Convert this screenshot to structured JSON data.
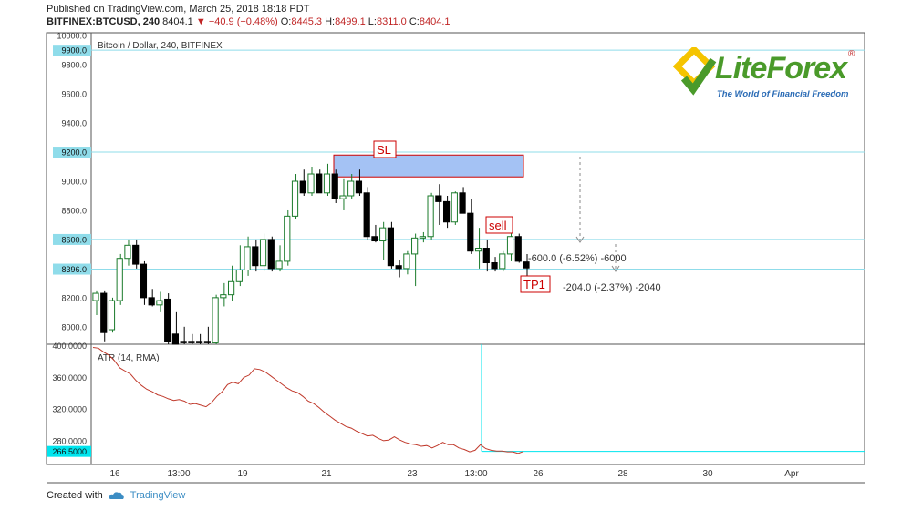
{
  "header": {
    "published": "Published on TradingView.com, March 25, 2018 18:18 PDT",
    "symbol": "BITFINEX:BTCUSD, 240",
    "last": "8404.1",
    "change_arrow": "▼",
    "change": "−40.9 (−0.48%)",
    "o_label": "O:",
    "o": "8445.3",
    "h_label": "H:",
    "h": "8499.1",
    "l_label": "L:",
    "l": "8311.0",
    "c_label": "C:",
    "c": "8404.1"
  },
  "logo": {
    "word": "LiteForex",
    "tagline": "The World of Financial Freedom",
    "reg": "®"
  },
  "footer": {
    "created_with": "Created with",
    "brand": "TradingView"
  },
  "colors": {
    "up_fill": "#ffffff",
    "candle_outline": "#1a7a2a",
    "down_fill": "#000000",
    "level_line": "#8fdcea",
    "atr_line": "#c0392b",
    "sl_box": "#a4c2f4",
    "sl_border": "#cc0000",
    "annotation_red": "#cc0000",
    "level_label_bg": "#8fdcea",
    "atr_label_bg": "#00e5ee"
  },
  "chart_data": [
    {
      "type": "candlestick",
      "title": "Bitcoin / Dollar, 240, BITFINEX",
      "ylim": [
        7880,
        10020
      ],
      "y_ticks": [
        "10000.0",
        "9800.0",
        "9600.0",
        "9400.0",
        "9200.0",
        "9000.0",
        "8800.0",
        "8600.0",
        "8400.0",
        "8200.0",
        "8000.0"
      ],
      "highlighted_levels": [
        {
          "label": "9900.0",
          "value": 9900
        },
        {
          "label": "9200.0",
          "value": 9200
        },
        {
          "label": "8600.0",
          "value": 8600
        },
        {
          "label": "8396.0",
          "value": 8396
        }
      ],
      "x_ticks": [
        "16",
        "13:00",
        "19",
        "21",
        "23",
        "13:00",
        "26",
        "28",
        "30",
        "Apr"
      ],
      "candles": [
        {
          "o": 8180,
          "h": 8250,
          "l": 8080,
          "c": 8230
        },
        {
          "o": 8230,
          "h": 8250,
          "l": 7900,
          "c": 7960
        },
        {
          "o": 7980,
          "h": 8200,
          "l": 7960,
          "c": 8180
        },
        {
          "o": 8180,
          "h": 8500,
          "l": 8150,
          "c": 8470
        },
        {
          "o": 8470,
          "h": 8600,
          "l": 8420,
          "c": 8560
        },
        {
          "o": 8560,
          "h": 8600,
          "l": 8400,
          "c": 8430
        },
        {
          "o": 8430,
          "h": 8450,
          "l": 8150,
          "c": 8200
        },
        {
          "o": 8200,
          "h": 8260,
          "l": 8140,
          "c": 8150
        },
        {
          "o": 8150,
          "h": 8240,
          "l": 8100,
          "c": 8180
        },
        {
          "o": 8190,
          "h": 8230,
          "l": 7880,
          "c": 7900
        },
        {
          "o": 7950,
          "h": 8100,
          "l": 7880,
          "c": 7880
        },
        {
          "o": 7900,
          "h": 8000,
          "l": 7880,
          "c": 7890
        },
        {
          "o": 7900,
          "h": 7950,
          "l": 7880,
          "c": 7890
        },
        {
          "o": 7900,
          "h": 7950,
          "l": 7880,
          "c": 7890
        },
        {
          "o": 7900,
          "h": 8000,
          "l": 7880,
          "c": 7890
        },
        {
          "o": 7890,
          "h": 8220,
          "l": 7880,
          "c": 8200
        },
        {
          "o": 8200,
          "h": 8300,
          "l": 8140,
          "c": 8220
        },
        {
          "o": 8220,
          "h": 8420,
          "l": 8180,
          "c": 8310
        },
        {
          "o": 8310,
          "h": 8560,
          "l": 8280,
          "c": 8390
        },
        {
          "o": 8390,
          "h": 8620,
          "l": 8350,
          "c": 8550
        },
        {
          "o": 8550,
          "h": 8600,
          "l": 8380,
          "c": 8420
        },
        {
          "o": 8420,
          "h": 8640,
          "l": 8380,
          "c": 8600
        },
        {
          "o": 8600,
          "h": 8620,
          "l": 8380,
          "c": 8400
        },
        {
          "o": 8400,
          "h": 8560,
          "l": 8380,
          "c": 8450
        },
        {
          "o": 8450,
          "h": 8800,
          "l": 8420,
          "c": 8760
        },
        {
          "o": 8760,
          "h": 9050,
          "l": 8740,
          "c": 9000
        },
        {
          "o": 9000,
          "h": 9080,
          "l": 8900,
          "c": 8920
        },
        {
          "o": 8920,
          "h": 9100,
          "l": 8900,
          "c": 9050
        },
        {
          "o": 9050,
          "h": 9080,
          "l": 8920,
          "c": 8920
        },
        {
          "o": 8920,
          "h": 9120,
          "l": 8900,
          "c": 9050
        },
        {
          "o": 9050,
          "h": 9080,
          "l": 8850,
          "c": 8880
        },
        {
          "o": 8880,
          "h": 9020,
          "l": 8800,
          "c": 8900
        },
        {
          "o": 8900,
          "h": 9050,
          "l": 8880,
          "c": 9000
        },
        {
          "o": 9000,
          "h": 9080,
          "l": 8900,
          "c": 8920
        },
        {
          "o": 8920,
          "h": 8960,
          "l": 8600,
          "c": 8620
        },
        {
          "o": 8620,
          "h": 8700,
          "l": 8580,
          "c": 8590
        },
        {
          "o": 8590,
          "h": 8720,
          "l": 8460,
          "c": 8680
        },
        {
          "o": 8680,
          "h": 8720,
          "l": 8400,
          "c": 8420
        },
        {
          "o": 8420,
          "h": 8460,
          "l": 8340,
          "c": 8400
        },
        {
          "o": 8400,
          "h": 8520,
          "l": 8360,
          "c": 8500
        },
        {
          "o": 8500,
          "h": 8640,
          "l": 8280,
          "c": 8610
        },
        {
          "o": 8610,
          "h": 8650,
          "l": 8580,
          "c": 8620
        },
        {
          "o": 8620,
          "h": 8920,
          "l": 8600,
          "c": 8900
        },
        {
          "o": 8900,
          "h": 8980,
          "l": 8700,
          "c": 8860
        },
        {
          "o": 8860,
          "h": 8900,
          "l": 8680,
          "c": 8720
        },
        {
          "o": 8720,
          "h": 8930,
          "l": 8700,
          "c": 8920
        },
        {
          "o": 8920,
          "h": 8960,
          "l": 8780,
          "c": 8780
        },
        {
          "o": 8780,
          "h": 8880,
          "l": 8500,
          "c": 8520
        },
        {
          "o": 8520,
          "h": 8680,
          "l": 8400,
          "c": 8540
        },
        {
          "o": 8540,
          "h": 8600,
          "l": 8380,
          "c": 8440
        },
        {
          "o": 8440,
          "h": 8480,
          "l": 8380,
          "c": 8400
        },
        {
          "o": 8400,
          "h": 8520,
          "l": 8380,
          "c": 8500
        },
        {
          "o": 8500,
          "h": 8640,
          "l": 8450,
          "c": 8620
        },
        {
          "o": 8620,
          "h": 8640,
          "l": 8440,
          "c": 8450
        },
        {
          "o": 8445.3,
          "h": 8499.1,
          "l": 8311.0,
          "c": 8404.1
        }
      ],
      "annotations": {
        "sl": "SL",
        "sell": "sell",
        "tp1": "TP1",
        "measure_sl": "-600.0 (-6.52%) -6000",
        "measure_tp": "-204.0 (-2.37%) -2040",
        "sl_zone_top": 9180,
        "sl_zone_bottom": 9030
      }
    },
    {
      "type": "line",
      "title": "ATR (14, RMA)",
      "ylim": [
        250,
        402
      ],
      "y_ticks": [
        "400.0000",
        "360.0000",
        "320.0000",
        "280.0000"
      ],
      "last_value_label": "266.5000",
      "last_value": 266.5,
      "values": [
        398,
        397,
        392,
        388,
        381,
        372,
        368,
        364,
        356,
        350,
        345,
        342,
        338,
        336,
        333,
        331,
        332,
        330,
        326,
        327,
        325,
        323,
        328,
        336,
        342,
        351,
        354,
        352,
        360,
        363,
        371,
        370,
        367,
        362,
        357,
        352,
        347,
        343,
        341,
        336,
        330,
        327,
        322,
        316,
        311,
        306,
        302,
        298,
        296,
        292,
        289,
        286,
        287,
        283,
        280,
        281,
        285,
        281,
        278,
        276,
        275,
        273,
        274,
        271,
        274,
        278,
        275,
        275,
        271,
        269,
        266,
        268,
        275,
        270,
        268,
        267,
        267,
        266,
        266,
        264,
        266.5
      ]
    }
  ]
}
